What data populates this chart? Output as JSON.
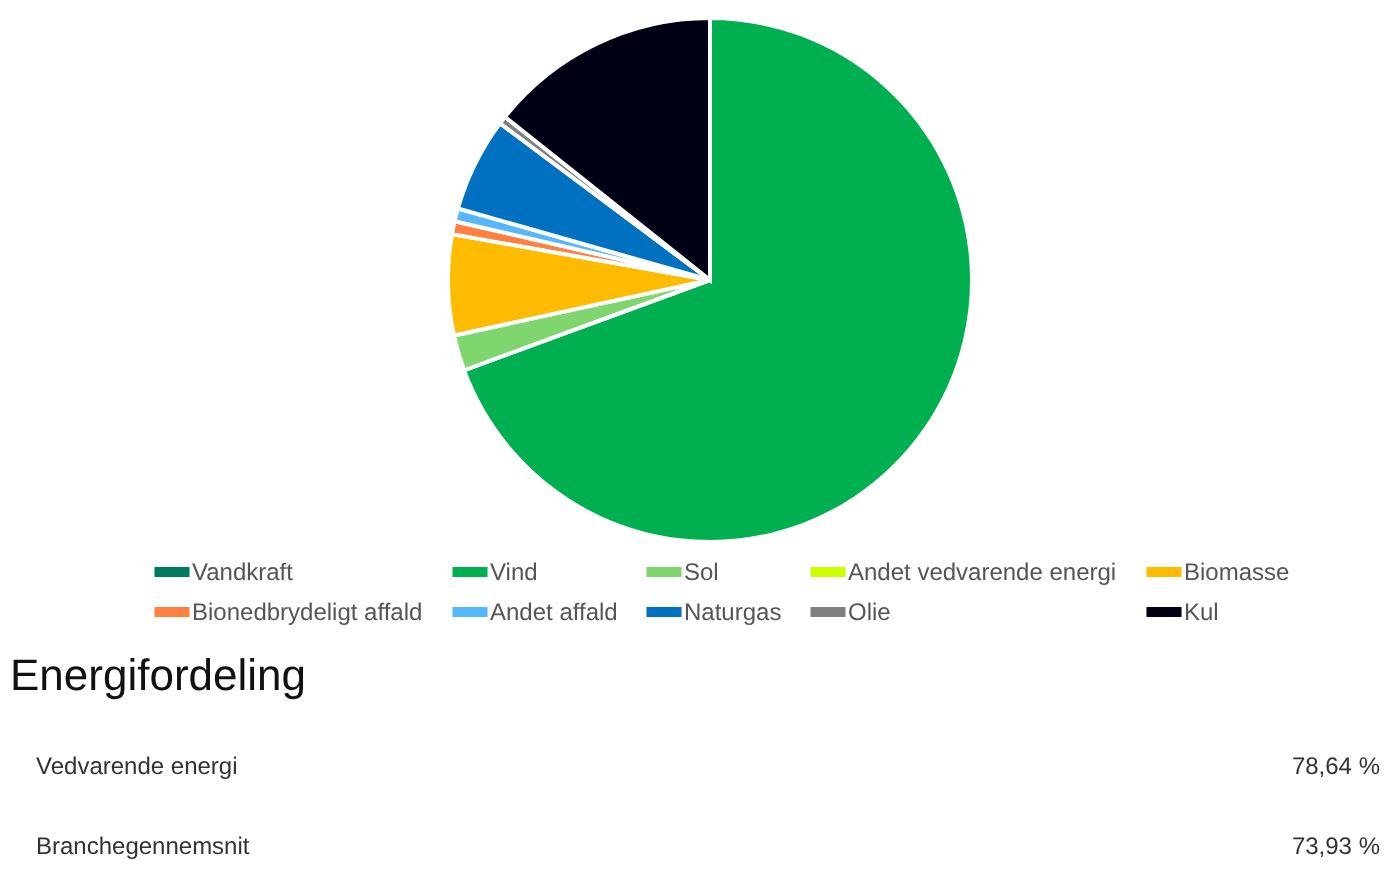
{
  "chart_data": {
    "type": "pie",
    "categories": [
      "Vandkraft",
      "Vind",
      "Sol",
      "Andet vedvarende energi",
      "Biomasse",
      "Bionedbrydeligt affald",
      "Andet affald",
      "Naturgas",
      "Olie",
      "Kul"
    ],
    "values": [
      0,
      69.4,
      2.2,
      0,
      6.2,
      0.8,
      0.8,
      5.8,
      0.5,
      14.3
    ],
    "colors": [
      "#007a5e",
      "#00b050",
      "#80d66e",
      "#ccff00",
      "#ffbb00",
      "#ff8040",
      "#55b8ff",
      "#0070c0",
      "#808080",
      "#000014"
    ],
    "legend": "bottom",
    "annotations": [
      "Energifordeling",
      "Vedvarende energi",
      "78,64 %",
      "Branchegennemsnit",
      "73,93 %"
    ]
  }
}
